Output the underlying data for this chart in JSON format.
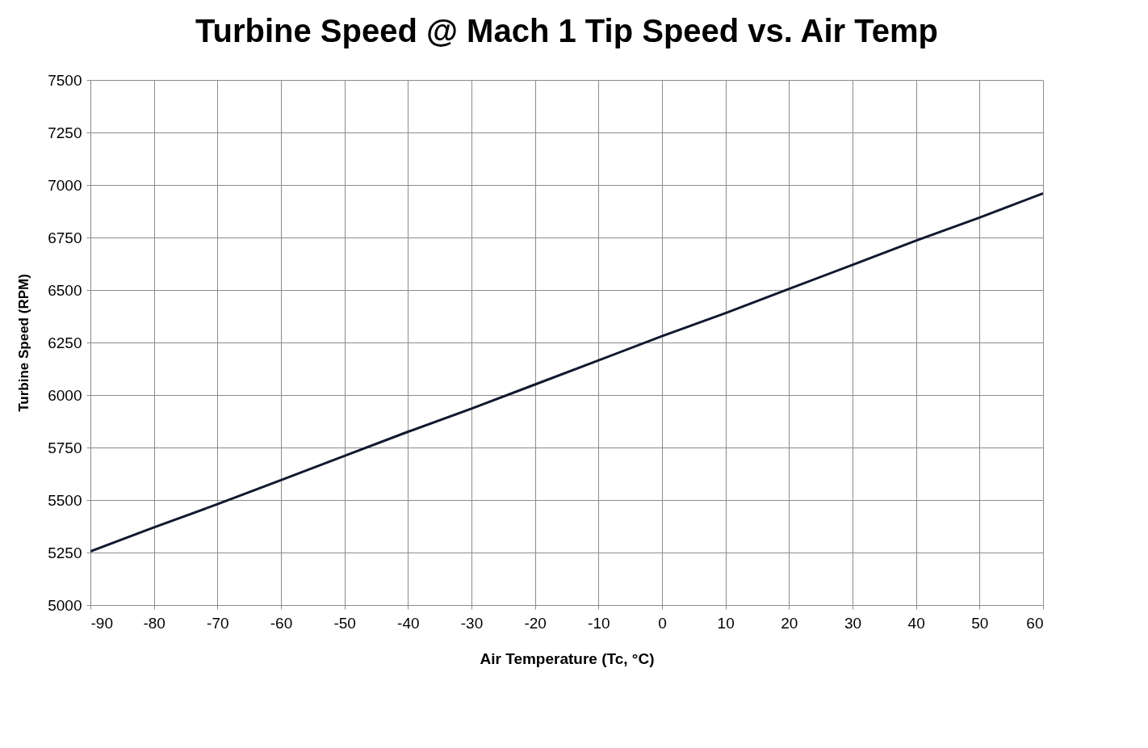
{
  "chart_data": {
    "type": "line",
    "title": "Turbine Speed @ Mach 1 Tip Speed vs. Air Temp",
    "xlabel": "Air Temperature (Tc, °C)",
    "ylabel": "Turbine Speed (RPM)",
    "x": [
      -90,
      -80,
      -70,
      -60,
      -50,
      -40,
      -30,
      -20,
      -10,
      0,
      10,
      20,
      30,
      40,
      50,
      60
    ],
    "series": [
      {
        "color": "#10192e",
        "values": [
          5255,
          5370,
          5480,
          5595,
          5710,
          5825,
          5935,
          6050,
          6165,
          6280,
          6390,
          6505,
          6620,
          6735,
          6845,
          6960
        ]
      }
    ],
    "xlim": [
      -90,
      60
    ],
    "xticks": [
      -90,
      -80,
      -70,
      -60,
      -50,
      -40,
      -30,
      -20,
      -10,
      0,
      10,
      20,
      30,
      40,
      50,
      60
    ],
    "ylim": [
      5000,
      7500
    ],
    "yticks": [
      5000,
      5250,
      5500,
      5750,
      6000,
      6250,
      6500,
      6750,
      7000,
      7250,
      7500
    ],
    "grid": true,
    "legend": false,
    "marker": "none",
    "line_style": "solid"
  }
}
